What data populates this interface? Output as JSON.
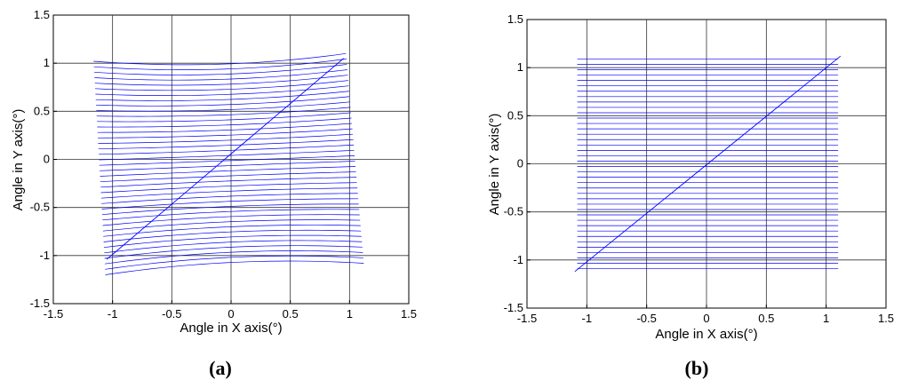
{
  "chart_data": [
    {
      "type": "line",
      "panel_label": "(a)",
      "xlabel": "Angle in X axis(°)",
      "ylabel": "Angle in Y axis(°)",
      "xlim": [
        -1.5,
        1.5
      ],
      "ylim": [
        -1.5,
        1.5
      ],
      "xticks": [
        "-1.5",
        "-1",
        "-0.5",
        "0",
        "0.5",
        "1",
        "1.5"
      ],
      "yticks": [
        "-1.5",
        "-1",
        "-0.5",
        "0",
        "0.5",
        "1",
        "1.5"
      ],
      "grid": true,
      "line_color": "#0000ff",
      "series": [
        {
          "kind": "scan-line-family",
          "count": 40,
          "y_center_top": 0.99,
          "y_center_bottom": -1.07,
          "x_left_top": -1.16,
          "x_right_top": 0.97,
          "x_left_bottom": -1.06,
          "x_right_bottom": 1.12,
          "bow_top": 0.07,
          "bow_bottom": -0.07,
          "tilt_top": 0.04,
          "tilt_bottom": 0.06
        },
        {
          "kind": "diagonal",
          "x": [
            -1.05,
            0.95
          ],
          "y": [
            -1.04,
            1.05
          ]
        }
      ]
    },
    {
      "type": "line",
      "panel_label": "(b)",
      "xlabel": "Angle in X axis(°)",
      "ylabel": "Angle in Y axis(°)",
      "xlim": [
        -1.5,
        1.5
      ],
      "ylim": [
        -1.5,
        1.5
      ],
      "xticks": [
        "-1.5",
        "-1",
        "-0.5",
        "0",
        "0.5",
        "1",
        "1.5"
      ],
      "yticks": [
        "-1.5",
        "-1",
        "-0.5",
        "0",
        "0.5",
        "1",
        "1.5"
      ],
      "grid": true,
      "line_color": "#0000ff",
      "series": [
        {
          "kind": "scan-line-family",
          "count": 40,
          "y_center_top": 1.09,
          "y_center_bottom": -1.09,
          "x_left_top": -1.08,
          "x_right_top": 1.1,
          "x_left_bottom": -1.08,
          "x_right_bottom": 1.1,
          "bow_top": 0.0,
          "bow_bottom": 0.0,
          "tilt_top": 0.0,
          "tilt_bottom": 0.0
        },
        {
          "kind": "diagonal",
          "x": [
            -1.1,
            1.12
          ],
          "y": [
            -1.12,
            1.12
          ]
        }
      ]
    }
  ]
}
